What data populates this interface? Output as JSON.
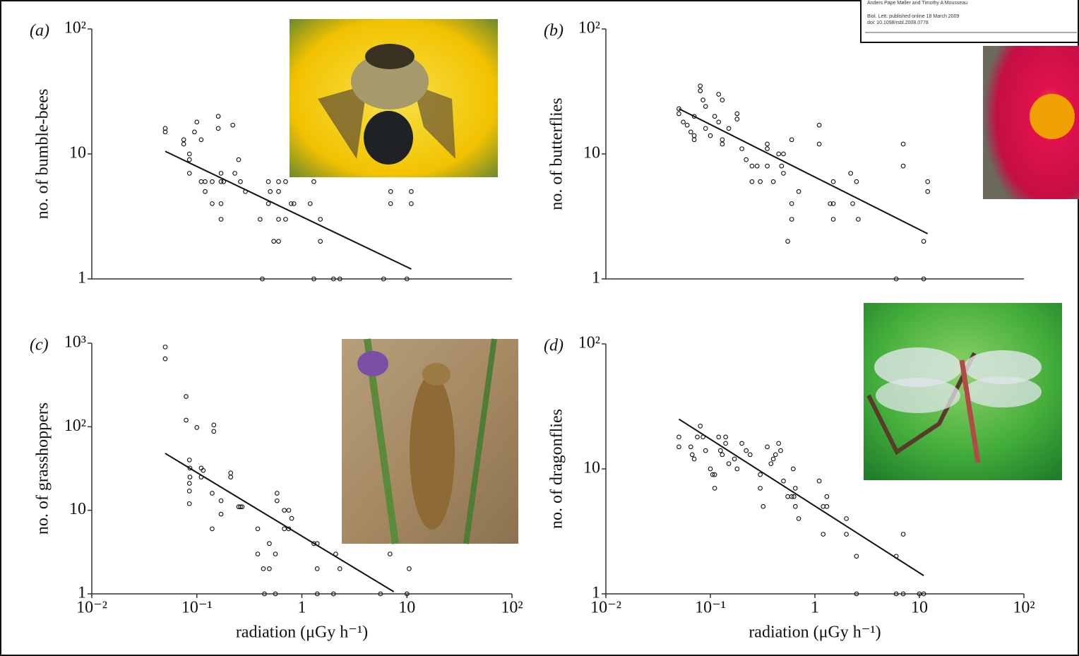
{
  "citation": {
    "authors": "Anders Pape Møller and Timothy A Mousseau",
    "journal": "Biol. Lett. published online 18 March 2009",
    "doi": "doi: 10.1098/rsbl.2008.0778"
  },
  "chart_data": [
    {
      "type": "scatter",
      "panel_label": "(a)",
      "ylabel": "no. of bumble-bees",
      "xscale": "log",
      "yscale": "log",
      "color": "#111111",
      "xlim": [
        0.01,
        100
      ],
      "ylim": [
        1,
        100
      ],
      "yticks": [
        1,
        10,
        {
          "value": 100,
          "label": "10²"
        }
      ],
      "x": [
        0.05,
        0.05,
        0.075,
        0.075,
        0.095,
        0.1,
        0.11,
        0.085,
        0.085,
        0.085,
        0.11,
        0.12,
        0.12,
        0.16,
        0.16,
        0.14,
        0.14,
        0.17,
        0.17,
        0.17,
        0.17,
        0.18,
        0.22,
        0.23,
        0.25,
        0.26,
        0.29,
        0.4,
        0.48,
        0.5,
        0.48,
        0.54,
        0.6,
        0.6,
        0.6,
        0.6,
        0.7,
        0.7,
        0.79,
        0.84,
        1.2,
        1.3,
        1.5,
        1.5,
        7,
        7,
        11,
        11,
        0.42,
        1.3,
        2,
        2.3,
        6,
        10
      ],
      "values": [
        16,
        15,
        13,
        12,
        15,
        18,
        13,
        10,
        9,
        7,
        6,
        6,
        5,
        20,
        16,
        6,
        4,
        6,
        4,
        3,
        7,
        6,
        17,
        7,
        9,
        6,
        5,
        3,
        6,
        5,
        4,
        2,
        2,
        3,
        6,
        5,
        6,
        3,
        4,
        4,
        4,
        6,
        3,
        2,
        5,
        4,
        5,
        4,
        1,
        1,
        1,
        1,
        1,
        1
      ],
      "fit": {
        "x": [
          0.05,
          11
        ],
        "values": [
          10.5,
          1.2
        ]
      }
    },
    {
      "type": "scatter",
      "panel_label": "(b)",
      "ylabel": "no. of butterflies",
      "xscale": "log",
      "yscale": "log",
      "color": "#111111",
      "xlim": [
        0.01,
        100
      ],
      "ylim": [
        1,
        100
      ],
      "yticks": [
        1,
        10,
        {
          "value": 100,
          "label": "10²"
        }
      ],
      "x": [
        0.05,
        0.05,
        0.055,
        0.06,
        0.065,
        0.07,
        0.07,
        0.07,
        0.08,
        0.08,
        0.085,
        0.09,
        0.09,
        0.1,
        0.11,
        0.12,
        0.13,
        0.12,
        0.13,
        0.13,
        0.15,
        0.18,
        0.18,
        0.2,
        0.22,
        0.25,
        0.25,
        0.3,
        0.28,
        0.35,
        0.35,
        0.35,
        0.4,
        0.45,
        0.48,
        0.5,
        0.5,
        0.6,
        0.55,
        0.6,
        0.6,
        0.7,
        1.1,
        1.1,
        1.4,
        1.5,
        1.5,
        1.5,
        2.2,
        2.5,
        2.6,
        2.3,
        7,
        7,
        12,
        12,
        11,
        6,
        11
      ],
      "values": [
        23,
        21,
        18,
        17,
        15,
        13,
        14,
        20,
        35,
        32,
        27,
        24,
        16,
        14,
        20,
        30,
        27,
        18,
        13,
        12,
        16,
        21,
        19,
        11,
        9,
        8,
        6,
        6,
        8,
        12,
        11,
        8,
        6,
        10,
        8,
        7,
        10,
        13,
        2,
        3,
        4,
        5,
        17,
        12,
        4,
        4,
        3,
        6,
        7,
        6,
        3,
        4,
        12,
        8,
        6,
        5,
        2,
        1,
        1
      ],
      "fit": {
        "x": [
          0.05,
          12
        ],
        "values": [
          23,
          2.3
        ]
      }
    },
    {
      "type": "scatter",
      "panel_label": "(c)",
      "ylabel": "no. of grasshoppers",
      "xlabel": "radiation (μGy h⁻¹)",
      "xscale": "log",
      "yscale": "log",
      "color": "#111111",
      "xlim": [
        0.01,
        100
      ],
      "ylim": [
        1,
        1000
      ],
      "xticks": [
        {
          "value": 0.01,
          "label": "10⁻²"
        },
        {
          "value": 0.1,
          "label": "10⁻¹"
        },
        1,
        10,
        {
          "value": 100,
          "label": "10²"
        }
      ],
      "yticks": [
        1,
        10,
        {
          "value": 100,
          "label": "10²"
        },
        {
          "value": 1000,
          "label": "10³"
        }
      ],
      "x": [
        0.05,
        0.05,
        0.079,
        0.079,
        0.1,
        0.145,
        0.145,
        0.085,
        0.086,
        0.086,
        0.085,
        0.085,
        0.085,
        0.11,
        0.115,
        0.11,
        0.14,
        0.14,
        0.17,
        0.17,
        0.21,
        0.21,
        0.25,
        0.26,
        0.27,
        0.38,
        0.38,
        0.43,
        0.49,
        0.49,
        0.56,
        0.58,
        0.58,
        0.68,
        0.75,
        0.68,
        0.75,
        0.8,
        1.3,
        1.4,
        1.4,
        2.1,
        2.3,
        6.9,
        10.5,
        0.44,
        0.56,
        1.4,
        2,
        5.6,
        10
      ],
      "values": [
        900,
        650,
        230,
        120,
        98,
        105,
        88,
        40,
        32,
        25,
        21,
        17,
        12,
        32,
        30,
        25,
        16,
        6,
        13,
        9,
        28,
        25,
        11,
        11,
        11,
        6,
        3,
        2,
        2,
        4,
        3,
        16,
        13,
        10,
        10,
        6,
        6,
        8,
        4,
        4,
        2,
        3,
        2,
        3,
        2,
        1,
        1,
        1,
        1,
        1,
        1
      ],
      "fit": {
        "x": [
          0.05,
          7.5
        ],
        "values": [
          48,
          1.06
        ]
      }
    },
    {
      "type": "scatter",
      "panel_label": "(d)",
      "ylabel": "no. of dragonflies",
      "xlabel": "radiation (μGy h⁻¹)",
      "xscale": "log",
      "yscale": "log",
      "color": "#111111",
      "xlim": [
        0.01,
        100
      ],
      "ylim": [
        1,
        100
      ],
      "xticks": [
        {
          "value": 0.01,
          "label": "10⁻²"
        },
        {
          "value": 0.1,
          "label": "10⁻¹"
        },
        1,
        10,
        {
          "value": 100,
          "label": "10²"
        }
      ],
      "yticks": [
        1,
        10,
        {
          "value": 100,
          "label": "10²"
        }
      ],
      "x": [
        0.05,
        0.05,
        0.065,
        0.067,
        0.07,
        0.075,
        0.08,
        0.085,
        0.09,
        0.1,
        0.105,
        0.11,
        0.11,
        0.12,
        0.125,
        0.13,
        0.14,
        0.14,
        0.15,
        0.17,
        0.18,
        0.2,
        0.22,
        0.24,
        0.3,
        0.3,
        0.32,
        0.35,
        0.38,
        0.4,
        0.42,
        0.45,
        0.47,
        0.5,
        0.55,
        0.6,
        0.63,
        0.65,
        0.65,
        0.62,
        0.7,
        1.1,
        1.2,
        1.2,
        1.3,
        1.3,
        2,
        2,
        2.5,
        6,
        7,
        2.5,
        6,
        7,
        10,
        11
      ],
      "values": [
        18,
        15,
        15,
        13,
        12,
        18,
        22,
        18,
        14,
        10,
        9,
        9,
        7,
        18,
        14,
        13,
        18,
        16,
        11,
        12,
        10,
        16,
        14,
        13,
        9,
        7,
        5,
        15,
        11,
        12,
        13,
        16,
        14,
        8,
        6,
        6,
        6,
        7,
        5,
        10,
        4,
        8,
        5,
        3,
        6,
        5,
        4,
        3,
        2,
        2,
        3,
        1,
        1,
        1,
        1,
        1
      ],
      "fit": {
        "x": [
          0.05,
          11
        ],
        "values": [
          25,
          1.4
        ]
      }
    }
  ]
}
